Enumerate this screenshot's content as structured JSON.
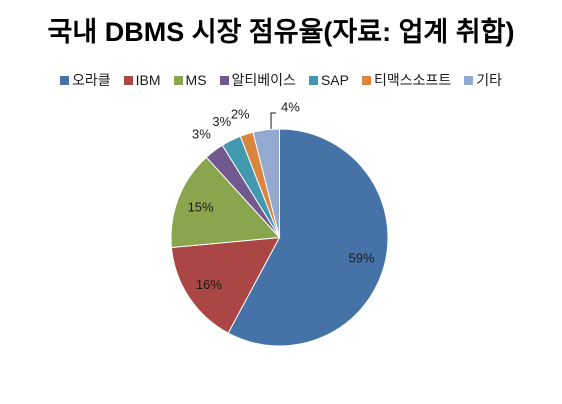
{
  "chart_data": {
    "type": "pie",
    "title": "국내 DBMS 시장 점유율(자료: 업계 취합)",
    "categories": [
      "오라클",
      "IBM",
      "MS",
      "알티베이스",
      "SAP",
      "티맥스소프트",
      "기타"
    ],
    "values": [
      59,
      16,
      15,
      3,
      3,
      2,
      4
    ],
    "value_suffix": "%",
    "colors": [
      "#4572A7",
      "#AA4643",
      "#89A54E",
      "#71588F",
      "#4198AF",
      "#DB843D",
      "#93A9CF"
    ],
    "legend_position": "top",
    "grid": false
  }
}
